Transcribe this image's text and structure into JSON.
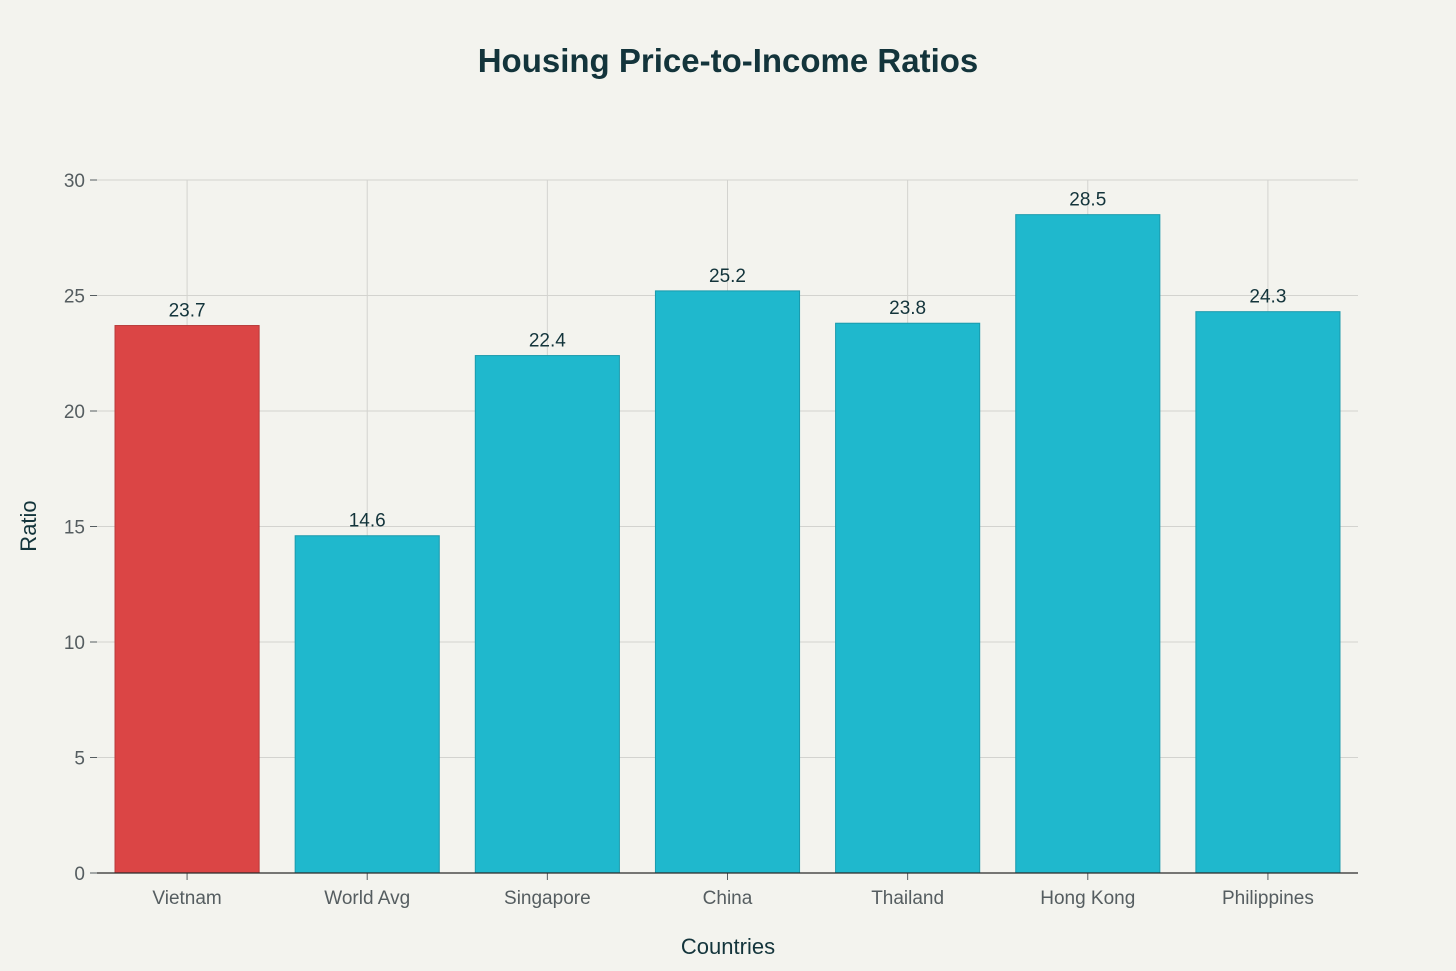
{
  "chart_data": {
    "type": "bar",
    "title": "Housing Price-to-Income Ratios",
    "xlabel": "Countries",
    "ylabel": "Ratio",
    "categories": [
      "Vietnam",
      "World Avg",
      "Singapore",
      "China",
      "Thailand",
      "Hong Kong",
      "Philippines"
    ],
    "values": [
      23.7,
      14.6,
      22.4,
      25.2,
      23.8,
      28.5,
      24.3
    ],
    "data_labels": [
      "23.7",
      "14.6",
      "22.4",
      "25.2",
      "23.8",
      "28.5",
      "24.3"
    ],
    "bar_colors": [
      "#db4545",
      "#1fb8cd",
      "#1fb8cd",
      "#1fb8cd",
      "#1fb8cd",
      "#1fb8cd",
      "#1fb8cd"
    ],
    "ylim": [
      0,
      30
    ],
    "yticks": [
      0,
      5,
      10,
      15,
      20,
      25,
      30
    ],
    "ytick_labels": [
      "0",
      "5",
      "10",
      "15",
      "20",
      "25",
      "30"
    ],
    "grid": true,
    "legend": "none"
  },
  "colors": {
    "background": "#f3f3ee",
    "highlight_bar": "#db4545",
    "bar": "#1fb8cd",
    "text": "#13343b"
  }
}
